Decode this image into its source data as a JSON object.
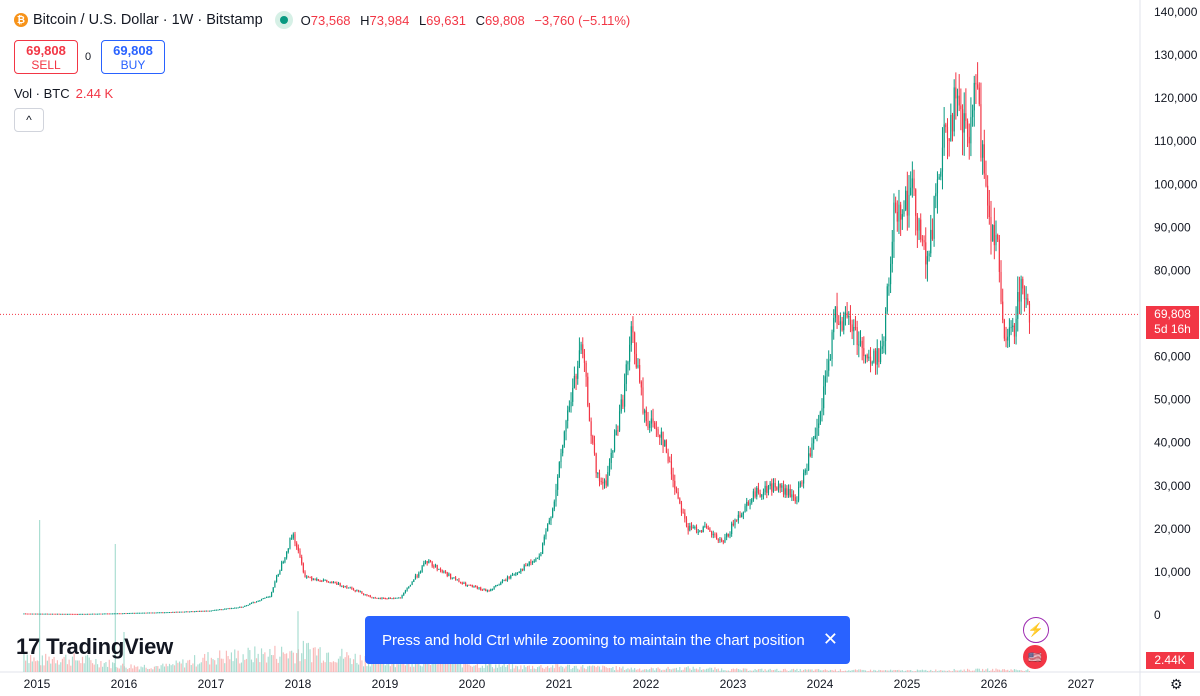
{
  "header": {
    "symbol_title": "Bitcoin / U.S. Dollar · 1W · Bitstamp",
    "coin_glyph": "₿",
    "ohlc": {
      "o_label": "O",
      "o_value": "73,568",
      "h_label": "H",
      "h_value": "73,984",
      "l_label": "L",
      "l_value": "69,631",
      "c_label": "C",
      "c_value": "69,808",
      "change": "−3,760 (−5.11%)"
    }
  },
  "trade": {
    "sell_price": "69,808",
    "sell_label": "SELL",
    "spread": "0",
    "buy_price": "69,808",
    "buy_label": "BUY"
  },
  "volume_legend": {
    "label": "Vol · BTC",
    "value": "2.44 K"
  },
  "collapse_glyph": "^",
  "logo_text": "TradingView",
  "logo_mark": "17",
  "toast": {
    "message": "Press and hold Ctrl while zooming to maintain the chart position",
    "close_glyph": "✕"
  },
  "price_tag": {
    "price": "69,808",
    "countdown": "5d 16h"
  },
  "volume_tag": "2.44K",
  "side_icons": {
    "ic1_glyph": "⚡",
    "ic2_glyph": "🇺🇸"
  },
  "settings_glyph": "⚙",
  "colors": {
    "up": "#089981",
    "down": "#f23645",
    "accent": "#2962ff",
    "last_price_line": "#f23645"
  },
  "chart_data": {
    "type": "candlestick",
    "title": "Bitcoin / U.S. Dollar · 1W · Bitstamp",
    "ylim": [
      -5000,
      140000
    ],
    "y_ticks": [
      "140,000",
      "130,000",
      "120,000",
      "110,000",
      "100,000",
      "90,000",
      "80,000",
      "70,000",
      "60,000",
      "50,000",
      "40,000",
      "30,000",
      "20,000",
      "10,000",
      "0"
    ],
    "y_tick_values": [
      140000,
      130000,
      120000,
      110000,
      100000,
      90000,
      80000,
      70000,
      60000,
      50000,
      40000,
      30000,
      20000,
      10000,
      0
    ],
    "x_ticks": [
      "2015",
      "2016",
      "2017",
      "2018",
      "2019",
      "2020",
      "2021",
      "2022",
      "2023",
      "2024",
      "2025",
      "2026",
      "2027"
    ],
    "x_tick_years": [
      2015,
      2016,
      2017,
      2018,
      2019,
      2020,
      2021,
      2022,
      2023,
      2024,
      2025,
      2026,
      2027
    ],
    "last_price": 69808,
    "price_path": [
      [
        2014.85,
        350
      ],
      [
        2015.5,
        250
      ],
      [
        2016.0,
        420
      ],
      [
        2016.5,
        650
      ],
      [
        2017.0,
        1000
      ],
      [
        2017.4,
        2000
      ],
      [
        2017.7,
        4500
      ],
      [
        2017.96,
        19000
      ],
      [
        2018.1,
        9000
      ],
      [
        2018.3,
        8000
      ],
      [
        2018.6,
        6500
      ],
      [
        2018.9,
        3800
      ],
      [
        2019.2,
        4000
      ],
      [
        2019.5,
        12500
      ],
      [
        2019.9,
        7300
      ],
      [
        2020.2,
        5500
      ],
      [
        2020.5,
        9500
      ],
      [
        2020.8,
        13500
      ],
      [
        2020.98,
        28000
      ],
      [
        2021.1,
        45000
      ],
      [
        2021.28,
        62000
      ],
      [
        2021.45,
        32000
      ],
      [
        2021.55,
        30000
      ],
      [
        2021.75,
        50000
      ],
      [
        2021.86,
        66000
      ],
      [
        2022.0,
        46000
      ],
      [
        2022.2,
        42000
      ],
      [
        2022.35,
        30000
      ],
      [
        2022.5,
        20000
      ],
      [
        2022.7,
        20000
      ],
      [
        2022.9,
        16500
      ],
      [
        2023.05,
        22000
      ],
      [
        2023.25,
        28000
      ],
      [
        2023.5,
        30000
      ],
      [
        2023.75,
        27000
      ],
      [
        2023.9,
        37000
      ],
      [
        2024.0,
        43000
      ],
      [
        2024.2,
        70000
      ],
      [
        2024.4,
        67000
      ],
      [
        2024.6,
        58000
      ],
      [
        2024.75,
        63000
      ],
      [
        2024.88,
        95000
      ],
      [
        2025.0,
        96000
      ],
      [
        2025.1,
        98000
      ],
      [
        2025.25,
        80000
      ],
      [
        2025.4,
        105000
      ],
      [
        2025.55,
        118000
      ],
      [
        2025.75,
        110000
      ],
      [
        2025.8,
        124000
      ],
      [
        2025.9,
        105000
      ],
      [
        2026.0,
        88000
      ],
      [
        2026.05,
        92000
      ],
      [
        2026.1,
        70000
      ],
      [
        2026.15,
        62000
      ],
      [
        2026.25,
        67000
      ],
      [
        2026.33,
        78000
      ],
      [
        2026.41,
        69808
      ]
    ],
    "volume_shape": [
      [
        2014.85,
        0.45
      ],
      [
        2015.0,
        0.2
      ],
      [
        2015.2,
        0.3
      ],
      [
        2015.7,
        0.22
      ],
      [
        2016.0,
        0.12
      ],
      [
        2016.5,
        0.12
      ],
      [
        2017.0,
        0.3
      ],
      [
        2017.5,
        0.35
      ],
      [
        2017.9,
        0.4
      ],
      [
        2018.2,
        0.45
      ],
      [
        2018.6,
        0.3
      ],
      [
        2019.0,
        0.22
      ],
      [
        2019.5,
        0.25
      ],
      [
        2020.0,
        0.18
      ],
      [
        2020.5,
        0.1
      ],
      [
        2021.0,
        0.12
      ],
      [
        2021.5,
        0.09
      ],
      [
        2022.0,
        0.06
      ],
      [
        2022.5,
        0.08
      ],
      [
        2023.0,
        0.05
      ],
      [
        2024.0,
        0.04
      ],
      [
        2025.0,
        0.03
      ],
      [
        2026.0,
        0.05
      ],
      [
        2026.41,
        0.04
      ]
    ]
  }
}
